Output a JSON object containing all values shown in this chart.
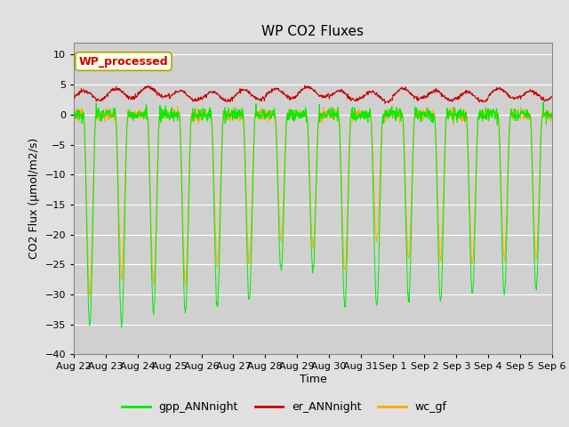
{
  "title": "WP CO2 Fluxes",
  "xlabel": "Time",
  "ylabel": "CO2 Flux (μmol/m2/s)",
  "ylim": [
    -40,
    12
  ],
  "yticks": [
    -40,
    -35,
    -30,
    -25,
    -20,
    -15,
    -10,
    -5,
    0,
    5,
    10
  ],
  "x_labels": [
    "Aug 22",
    "Aug 23",
    "Aug 24",
    "Aug 25",
    "Aug 26",
    "Aug 27",
    "Aug 28",
    "Aug 29",
    "Aug 30",
    "Aug 31",
    "Sep 1",
    "Sep 2",
    "Sep 3",
    "Sep 4",
    "Sep 5",
    "Sep 6"
  ],
  "n_days": 15,
  "points_per_day": 96,
  "background_color": "#e0e0e0",
  "plot_bg_color": "#d0d0d0",
  "grid_color": "#ffffff",
  "color_gpp": "#00ee00",
  "color_er": "#cc0000",
  "color_wc": "#ffaa00",
  "legend_labels": [
    "gpp_ANNnight",
    "er_ANNnight",
    "wc_gf"
  ],
  "annotation_text": "WP_processed",
  "annotation_color": "#cc0000",
  "annotation_bg": "#ffffe8",
  "annotation_border": "#aaaa00",
  "title_fontsize": 11,
  "axis_fontsize": 9,
  "tick_fontsize": 8,
  "legend_fontsize": 9,
  "gpp_amplitudes": [
    35,
    35,
    33,
    33,
    32,
    31,
    26,
    26,
    32,
    32,
    31,
    31,
    30,
    30,
    29
  ],
  "wc_amplitudes": [
    30,
    27,
    28,
    28,
    25,
    25,
    21,
    22,
    26,
    21,
    24,
    24,
    25,
    24,
    24
  ],
  "er_base": [
    3.2,
    3.5,
    3.8,
    3.2,
    3.0,
    3.3,
    3.5,
    3.8,
    3.2,
    3.0,
    3.5,
    3.2,
    3.0,
    3.5,
    3.2
  ]
}
